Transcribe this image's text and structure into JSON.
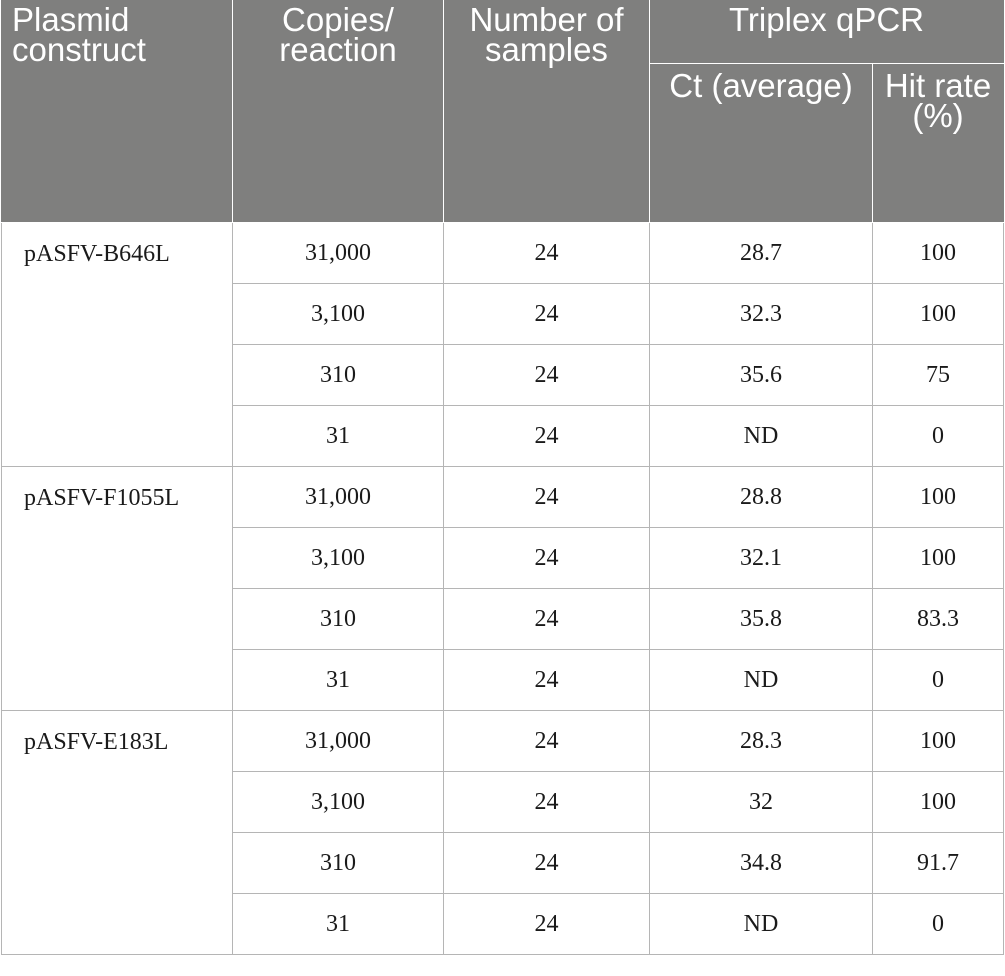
{
  "headers": {
    "plasmid_construct": "Plasmid construct",
    "copies_reaction": "Copies/ reaction",
    "number_of_samples": "Number of samples",
    "triplex_qpcr": "Triplex qPCR",
    "ct_average": "Ct (average)",
    "hit_rate": "Hit rate (%)"
  },
  "groups": [
    {
      "construct": "pASFV-B646L",
      "rows": [
        {
          "copies": "31,000",
          "samples": "24",
          "ct": "28.7",
          "hit_rate": "100"
        },
        {
          "copies": "3,100",
          "samples": "24",
          "ct": "32.3",
          "hit_rate": "100"
        },
        {
          "copies": "310",
          "samples": "24",
          "ct": "35.6",
          "hit_rate": "75"
        },
        {
          "copies": "31",
          "samples": "24",
          "ct": "ND",
          "hit_rate": "0"
        }
      ]
    },
    {
      "construct": "pASFV-F1055L",
      "rows": [
        {
          "copies": "31,000",
          "samples": "24",
          "ct": "28.8",
          "hit_rate": "100"
        },
        {
          "copies": "3,100",
          "samples": "24",
          "ct": "32.1",
          "hit_rate": "100"
        },
        {
          "copies": "310",
          "samples": "24",
          "ct": "35.8",
          "hit_rate": "83.3"
        },
        {
          "copies": "31",
          "samples": "24",
          "ct": "ND",
          "hit_rate": "0"
        }
      ]
    },
    {
      "construct": "pASFV-E183L",
      "rows": [
        {
          "copies": "31,000",
          "samples": "24",
          "ct": "28.3",
          "hit_rate": "100"
        },
        {
          "copies": "3,100",
          "samples": "24",
          "ct": "32",
          "hit_rate": "100"
        },
        {
          "copies": "310",
          "samples": "24",
          "ct": "34.8",
          "hit_rate": "91.7"
        },
        {
          "copies": "31",
          "samples": "24",
          "ct": "ND",
          "hit_rate": "0"
        }
      ]
    }
  ]
}
